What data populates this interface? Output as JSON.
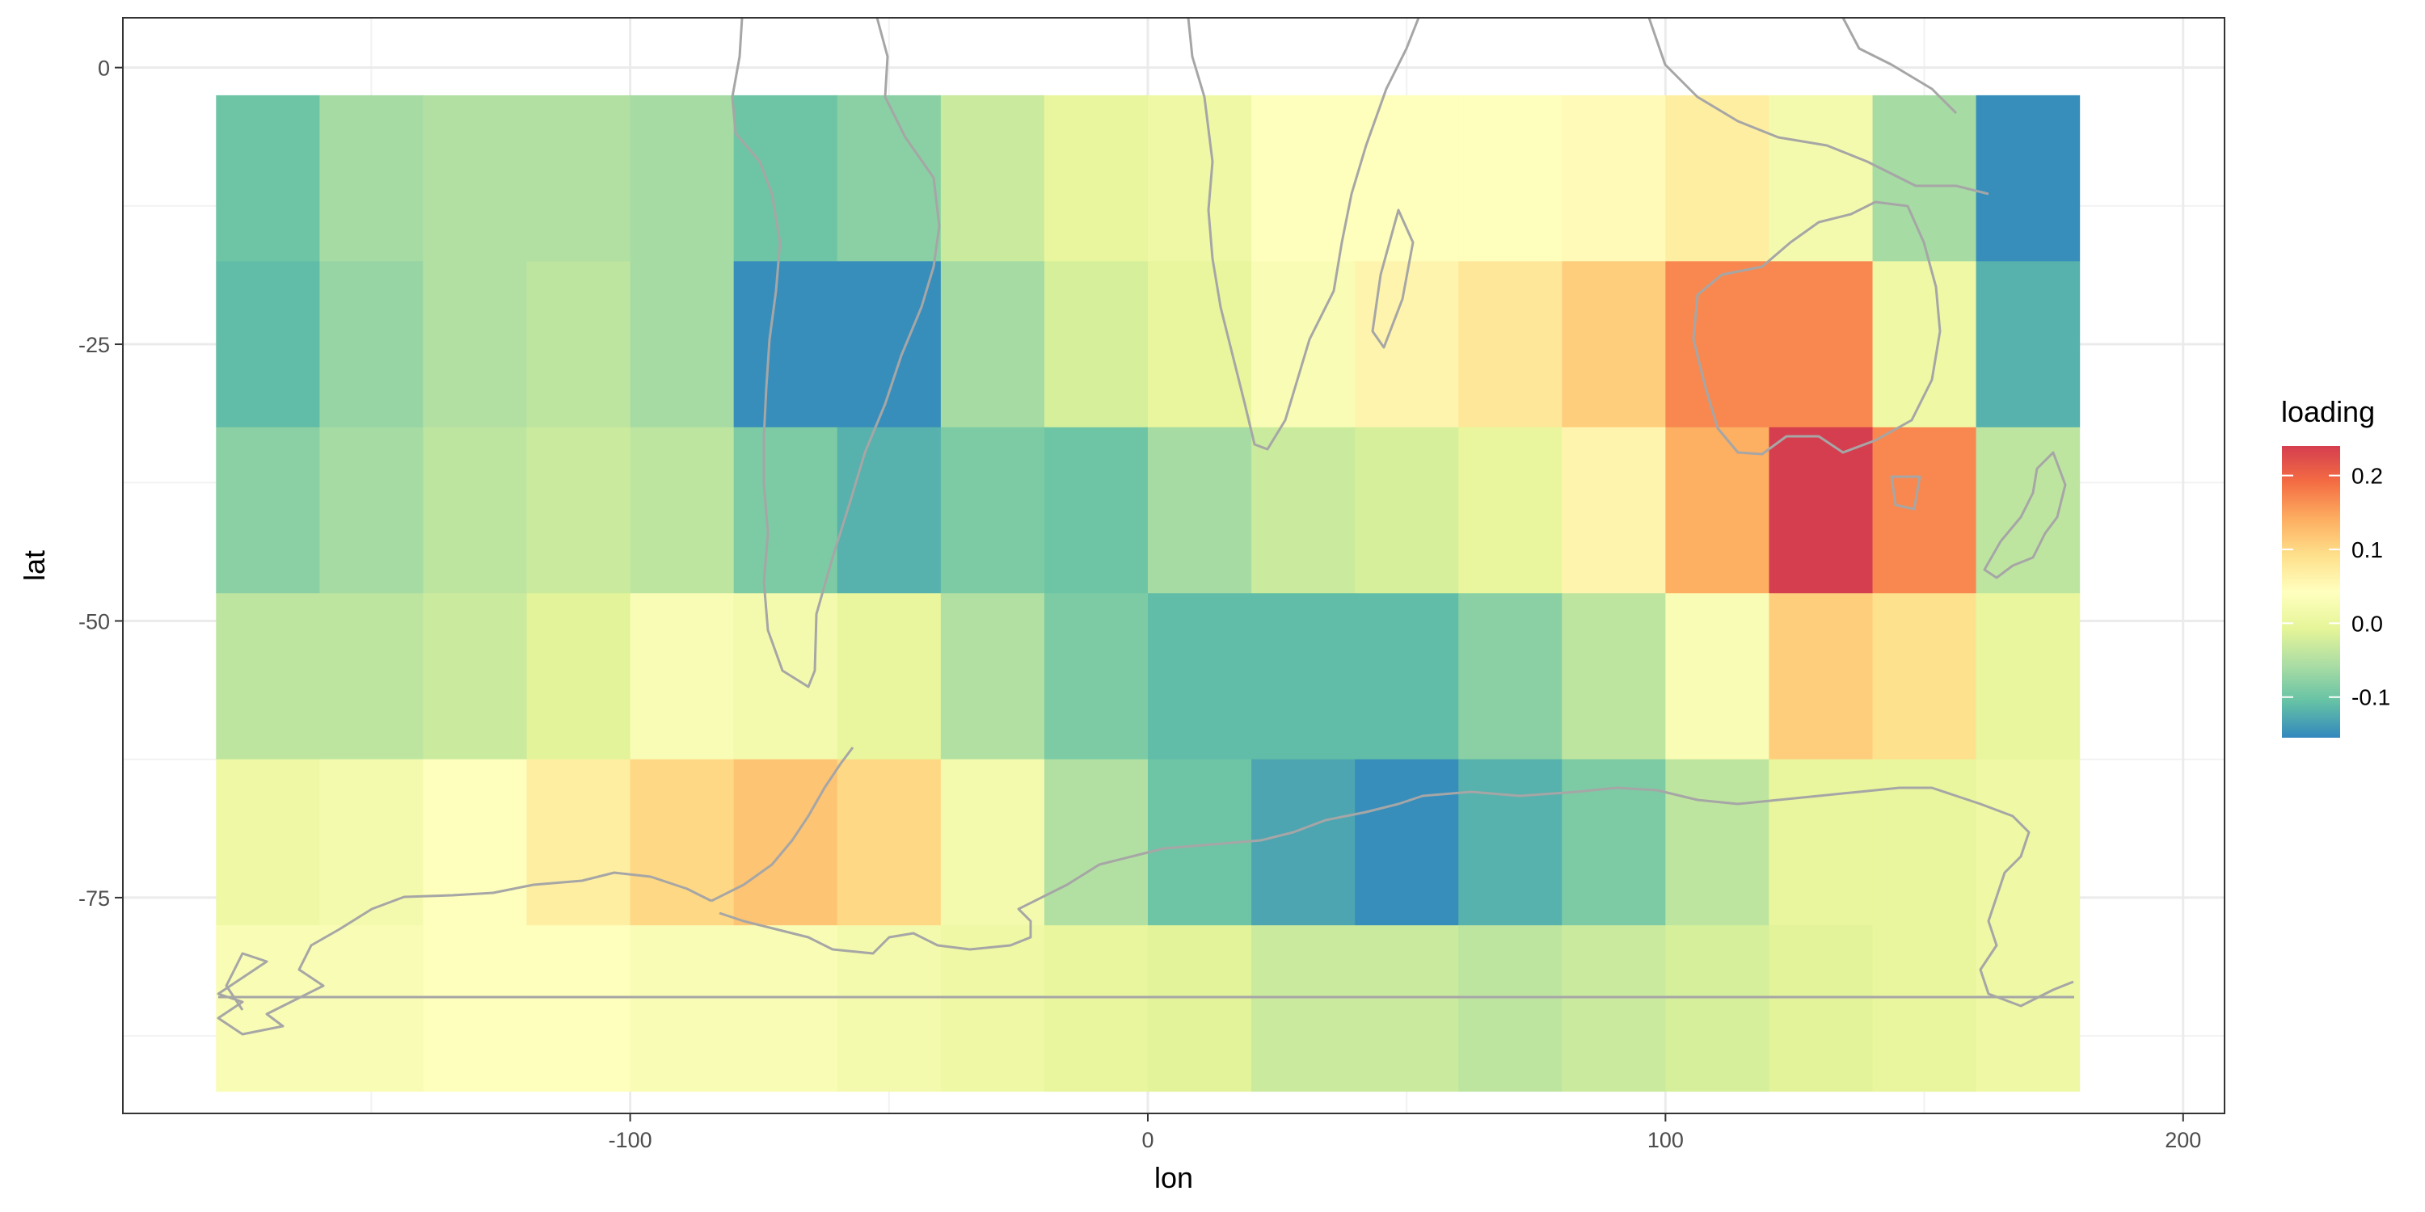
{
  "chart_data": {
    "type": "heatmap",
    "title": "",
    "xlabel": "lon",
    "ylabel": "lat",
    "xlim": [
      -198,
      208
    ],
    "ylim": [
      -94.5,
      4.5
    ],
    "x_ticks": [
      -100,
      0,
      100,
      200
    ],
    "y_ticks": [
      0,
      -25,
      -50,
      -75
    ],
    "grid": true,
    "legend": {
      "title": "loading",
      "position": "right",
      "labels": [
        "0.2",
        "0.1",
        "0.0",
        "-0.1"
      ],
      "breaks": [
        0.2,
        0.1,
        0.0,
        -0.1
      ],
      "range": [
        -0.155,
        0.24
      ],
      "colors": [
        "#3288bd",
        "#66c2a5",
        "#abdda4",
        "#e6f598",
        "#ffffbf",
        "#fee08b",
        "#fdae61",
        "#f46d43",
        "#d53e4f"
      ]
    },
    "cell_size": [
      20,
      15
    ],
    "lon_centers": [
      -170,
      -150,
      -130,
      -110,
      -90,
      -70,
      -50,
      -30,
      -10,
      10,
      30,
      50,
      70,
      90,
      110,
      130,
      150,
      170
    ],
    "lat_centers": [
      -10,
      -25,
      -40,
      -55,
      -70,
      -85
    ],
    "values": [
      [
        -0.1,
        -0.06,
        -0.05,
        -0.05,
        -0.06,
        -0.1,
        -0.08,
        -0.03,
        0.0,
        0.01,
        0.04,
        0.04,
        0.04,
        0.05,
        0.07,
        0.02,
        -0.06,
        -0.15
      ],
      [
        -0.11,
        -0.07,
        -0.05,
        -0.04,
        -0.06,
        -0.15,
        -0.15,
        -0.06,
        -0.02,
        0.0,
        0.03,
        0.06,
        0.08,
        0.11,
        0.17,
        0.17,
        0.01,
        -0.12
      ],
      [
        -0.08,
        -0.06,
        -0.04,
        -0.03,
        -0.04,
        -0.09,
        -0.12,
        -0.09,
        -0.1,
        -0.06,
        -0.03,
        -0.02,
        0.0,
        0.06,
        0.14,
        0.24,
        0.17,
        -0.04
      ],
      [
        -0.04,
        -0.04,
        -0.03,
        -0.01,
        0.03,
        0.02,
        0.0,
        -0.05,
        -0.09,
        -0.11,
        -0.11,
        -0.11,
        -0.08,
        -0.04,
        0.03,
        0.11,
        0.09,
        0.0
      ],
      [
        0.01,
        0.02,
        0.04,
        0.07,
        0.1,
        0.12,
        0.1,
        0.02,
        -0.05,
        -0.1,
        -0.13,
        -0.15,
        -0.12,
        -0.09,
        -0.04,
        0.0,
        0.0,
        0.01
      ],
      [
        0.03,
        0.03,
        0.04,
        0.04,
        0.03,
        0.03,
        0.02,
        0.01,
        0.0,
        -0.01,
        -0.03,
        -0.03,
        -0.04,
        -0.03,
        -0.02,
        -0.01,
        0.0,
        0.01
      ]
    ]
  }
}
